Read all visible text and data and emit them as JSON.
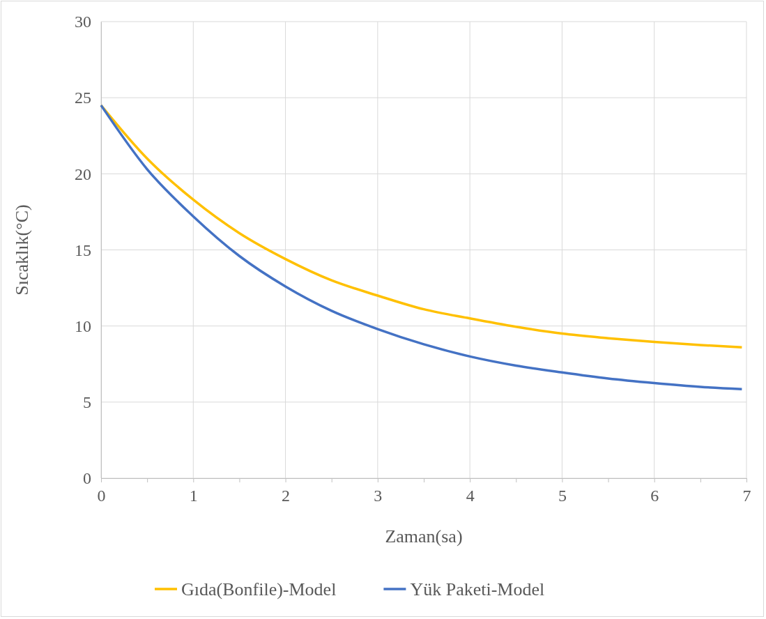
{
  "chart_data": {
    "type": "line",
    "xlabel": "Zaman(sa)",
    "ylabel": "Sıcaklık(°C)",
    "x": [
      0,
      0.5,
      1,
      1.5,
      2,
      2.5,
      3,
      3.5,
      4,
      4.5,
      5,
      5.5,
      6,
      6.5,
      6.95
    ],
    "series": [
      {
        "name": "Gıda(Bonfile)-Model",
        "color": "#ffc000",
        "values": [
          24.5,
          21.0,
          18.3,
          16.1,
          14.4,
          13.0,
          12.0,
          11.1,
          10.5,
          9.95,
          9.5,
          9.2,
          8.95,
          8.75,
          8.6
        ]
      },
      {
        "name": "Yük Paketi-Model",
        "color": "#4472c4",
        "values": [
          24.5,
          20.3,
          17.2,
          14.6,
          12.6,
          11.0,
          9.8,
          8.8,
          8.0,
          7.4,
          6.95,
          6.55,
          6.25,
          6.0,
          5.85
        ]
      }
    ],
    "xlim": [
      0,
      7
    ],
    "xticks": [
      0,
      {
        "value": 0.5,
        "label": null
      },
      1,
      {
        "value": 1.5,
        "label": null
      },
      2,
      {
        "value": 2.5,
        "label": null
      },
      3,
      {
        "value": 3.5,
        "label": null
      },
      4,
      {
        "value": 4.5,
        "label": null
      },
      5,
      {
        "value": 5.5,
        "label": null
      },
      6,
      {
        "value": 6.5,
        "label": null
      },
      7
    ],
    "ylim": [
      0,
      30
    ],
    "yticks": [
      0,
      5,
      10,
      15,
      20,
      25,
      30
    ],
    "grid": true,
    "legend": "bottom",
    "marker": "none",
    "line_style": "solid"
  }
}
